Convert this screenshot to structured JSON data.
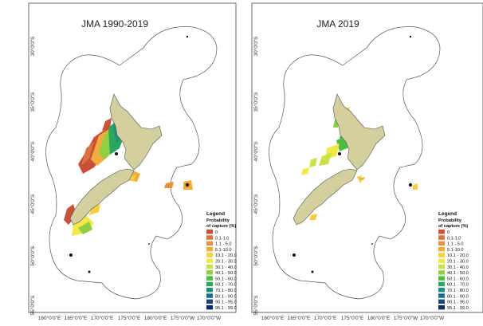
{
  "panels": [
    {
      "title": "JMA 1990-2019",
      "lat_labels": [
        "30°0'0\"S",
        "35°0'0\"S",
        "40°0'0\"S",
        "45°0'0\"S",
        "50°0'0\"S",
        "55°0'0\"S"
      ],
      "lon_labels": [
        "160°0'0\"E",
        "165°0'0\"E",
        "170°0'0\"E",
        "175°0'0\"E",
        "180°0'0\"E",
        "175°0'0\"W",
        "170°0'0\"W"
      ],
      "legend": {
        "title": "Legend",
        "subtitle_line1": "Probability",
        "subtitle_line2": "of capture (%)"
      }
    },
    {
      "title": "JMA 2019",
      "lat_labels": [
        "30°0'0\"S",
        "35°0'0\"S",
        "40°0'0\"S",
        "45°0'0\"S",
        "50°0'0\"S",
        "55°0'0\"S"
      ],
      "lon_labels": [
        "160°0'0\"E",
        "165°0'0\"E",
        "170°0'0\"E",
        "175°0'0\"E",
        "180°0'0\"E",
        "175°0'0\"W",
        "170°0'0\"W"
      ],
      "legend": {
        "title": "Legend",
        "subtitle_line1": "Probability",
        "subtitle_line2": "of capture (%)"
      }
    }
  ],
  "legend_classes": [
    {
      "label": "0",
      "color": "#c9503a"
    },
    {
      "label": "0.1-1.0",
      "color": "#d9733f"
    },
    {
      "label": "1.1 - 5.0",
      "color": "#e8913f"
    },
    {
      "label": "5.1-10.0",
      "color": "#f0ad3d"
    },
    {
      "label": "10.1 - 20.0",
      "color": "#f6cf3e"
    },
    {
      "label": "20.1 - 30.0",
      "color": "#f2e84a"
    },
    {
      "label": "30.1 - 40.0",
      "color": "#c8e24a"
    },
    {
      "label": "40.1 - 50.0",
      "color": "#8fd043"
    },
    {
      "label": "50.1 - 60.0",
      "color": "#4fbd3f"
    },
    {
      "label": "60.1 - 70.0",
      "color": "#2aa65e"
    },
    {
      "label": "70.1 - 80.0",
      "color": "#1f8f80"
    },
    {
      "label": "80.1 - 90.0",
      "color": "#1a6e8a"
    },
    {
      "label": "90.1 - 95.0",
      "color": "#17467a"
    },
    {
      "label": "95.1 - 99.0",
      "color": "#0d2a63"
    }
  ],
  "colors": {
    "land": "#d3cf9e",
    "land_outline": "#555555",
    "eez_outline": "#555555",
    "frame": "#444444"
  }
}
